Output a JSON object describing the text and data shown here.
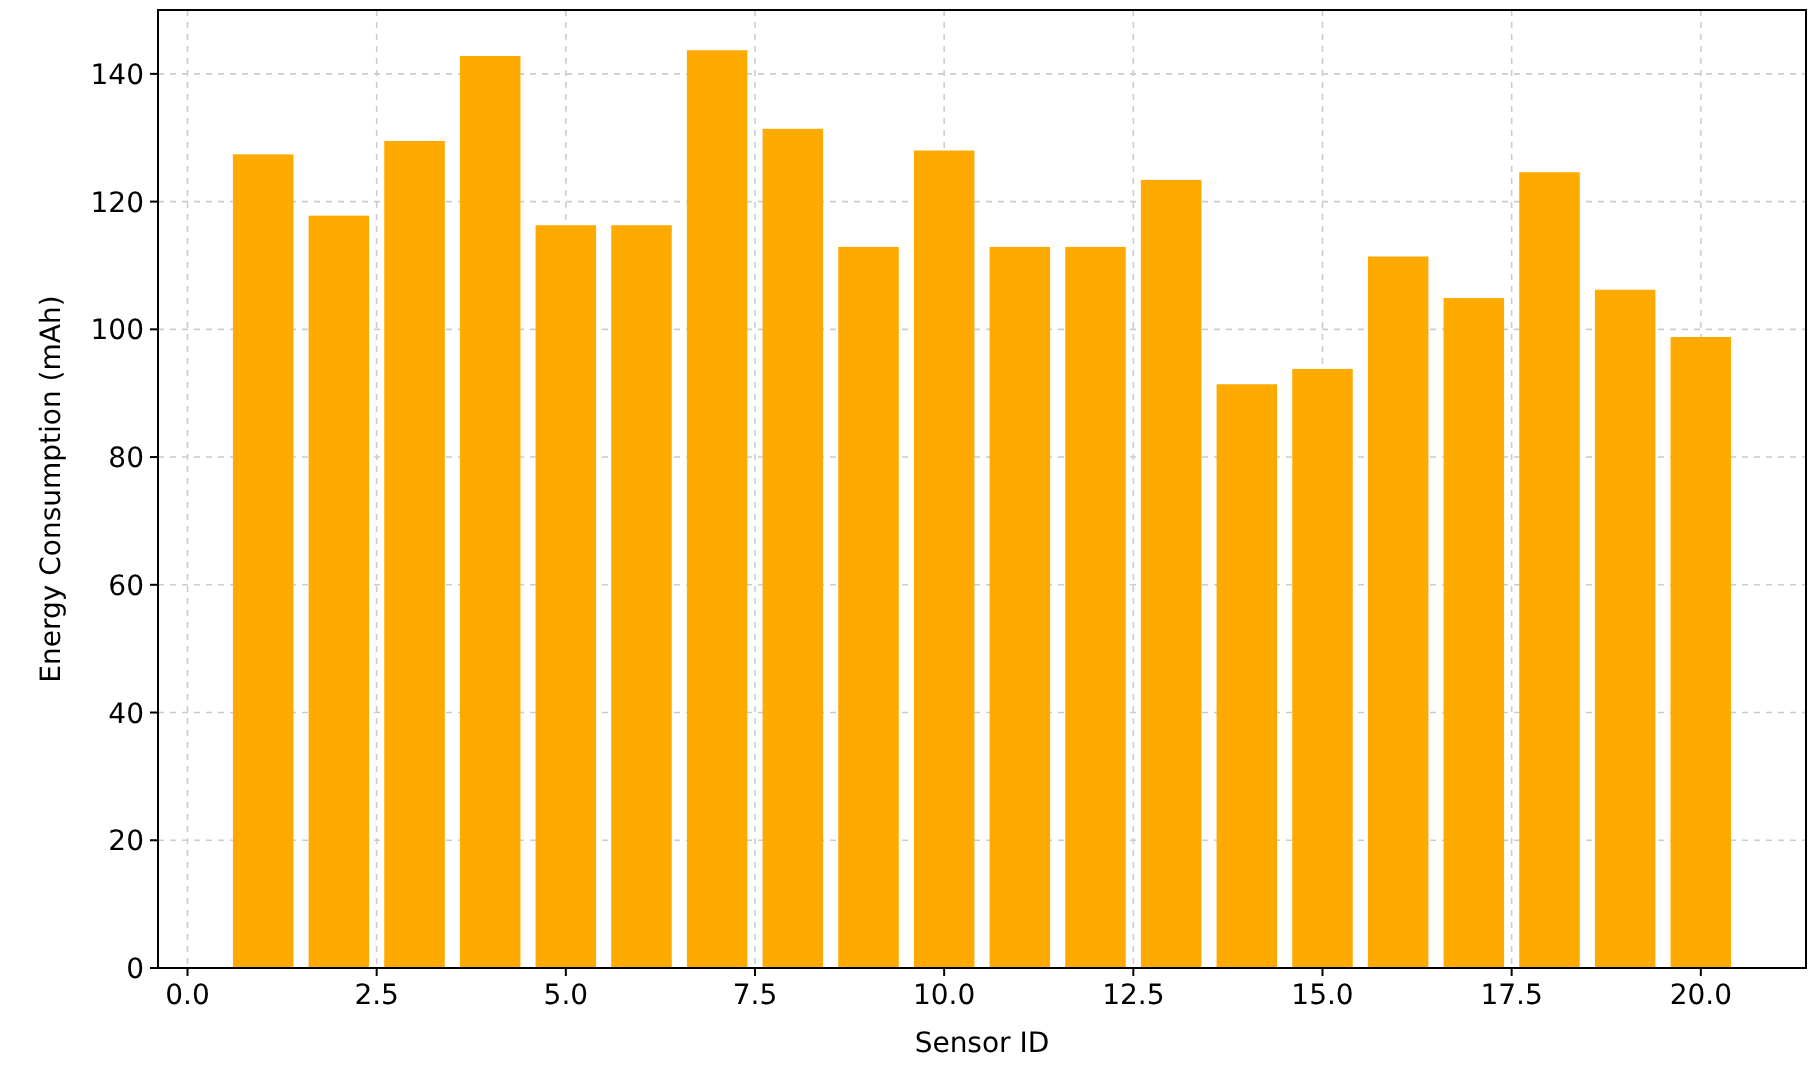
{
  "chart_data": {
    "type": "bar",
    "xlabel": "Sensor ID",
    "ylabel": "Energy Consumption (mAh)",
    "x": [
      1,
      2,
      3,
      4,
      5,
      6,
      7,
      8,
      9,
      10,
      11,
      12,
      13,
      14,
      15,
      16,
      17,
      18,
      19,
      20
    ],
    "values": [
      127.4,
      117.8,
      129.5,
      142.8,
      116.3,
      116.3,
      143.7,
      131.4,
      112.9,
      128,
      112.9,
      112.9,
      123.4,
      91.4,
      93.8,
      111.4,
      104.9,
      124.6,
      106.2,
      98.8
    ],
    "color": "#ffaa00",
    "xlim": [
      -0.39,
      21.39
    ],
    "xticks": [
      {
        "value": 0,
        "label": "0.0"
      },
      {
        "value": 2.5,
        "label": "2.5"
      },
      {
        "value": 5,
        "label": "5.0"
      },
      {
        "value": 7.5,
        "label": "7.5"
      },
      {
        "value": 10,
        "label": "10.0"
      },
      {
        "value": 12.5,
        "label": "12.5"
      },
      {
        "value": 15,
        "label": "15.0"
      },
      {
        "value": 17.5,
        "label": "17.5"
      },
      {
        "value": 20,
        "label": "20.0"
      }
    ],
    "ylim": [
      0,
      150
    ],
    "yticks": [
      0,
      20,
      40,
      60,
      80,
      100,
      120,
      140
    ],
    "grid": true
  }
}
